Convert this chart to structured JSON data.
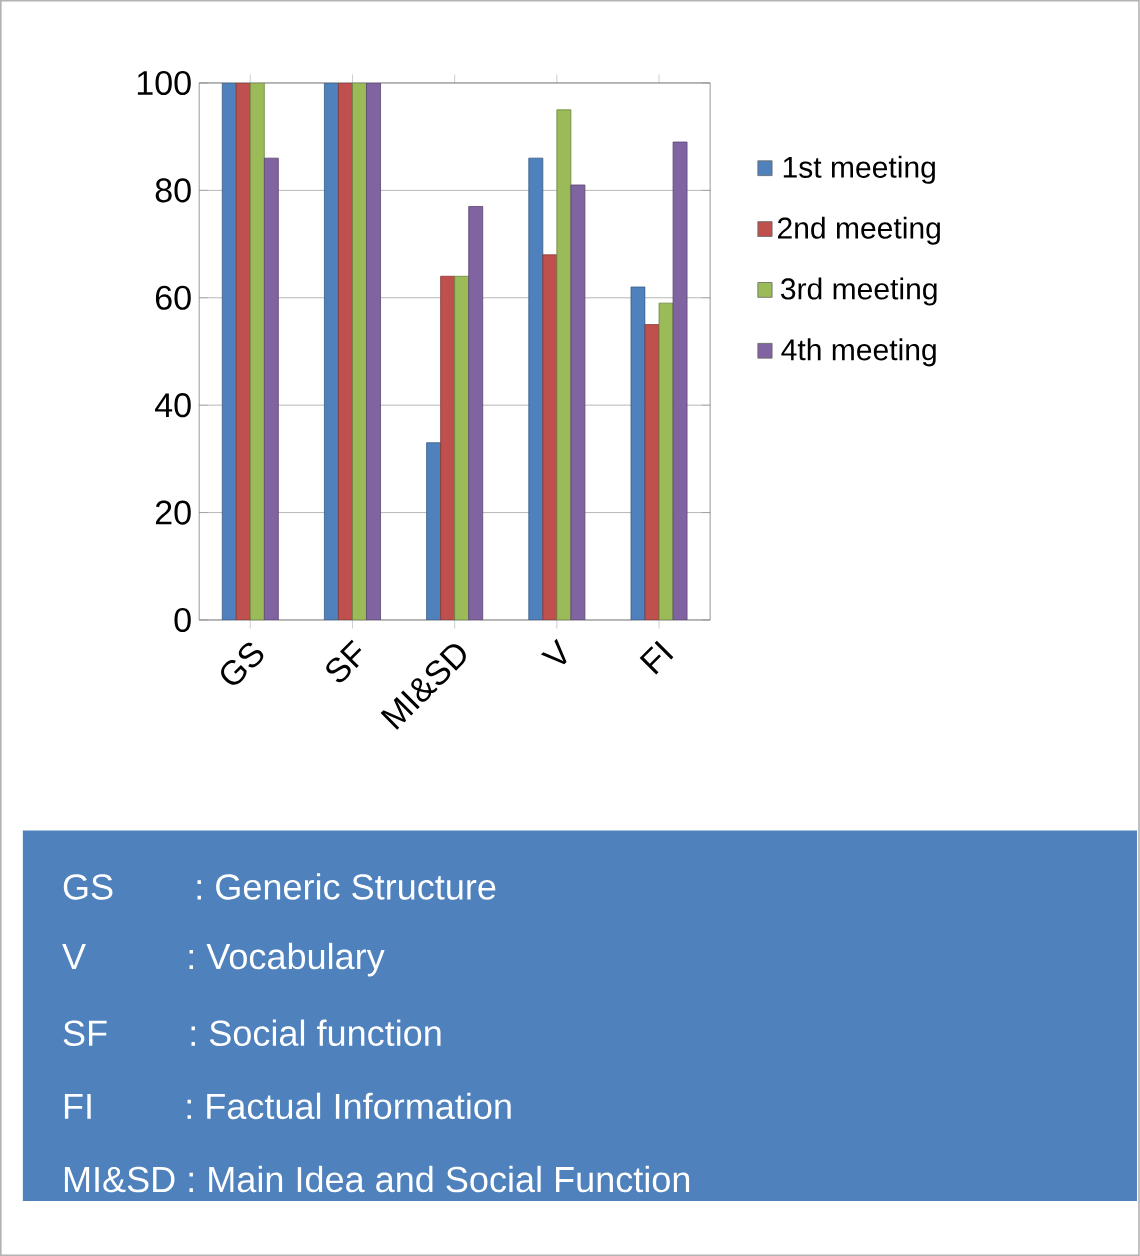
{
  "chart_data": {
    "type": "bar",
    "categories": [
      "GS",
      "SF",
      "MI&SD",
      "V",
      "FI"
    ],
    "series": [
      {
        "name": "1st meeting",
        "color": "#4f81bd",
        "values": [
          100,
          100,
          33,
          86,
          62
        ]
      },
      {
        "name": "2nd meeting",
        "color": "#c0504d",
        "values": [
          100,
          100,
          64,
          68,
          55
        ]
      },
      {
        "name": "3rd meeting",
        "color": "#9bbb59",
        "values": [
          100,
          100,
          64,
          95,
          59
        ]
      },
      {
        "name": "4th meeting",
        "color": "#8064a2",
        "values": [
          86,
          100,
          77,
          81,
          89
        ]
      }
    ],
    "ylim": [
      0,
      100
    ],
    "yticks": [
      0,
      20,
      40,
      60,
      80,
      100
    ],
    "grid": "y",
    "legend": "right",
    "annotations": [
      "GS        : Generic Structure",
      "V          : Vocabulary",
      "SF        : Social function",
      "FI         : Factual Information",
      "MI&SD : Main Idea and Social Function"
    ]
  }
}
